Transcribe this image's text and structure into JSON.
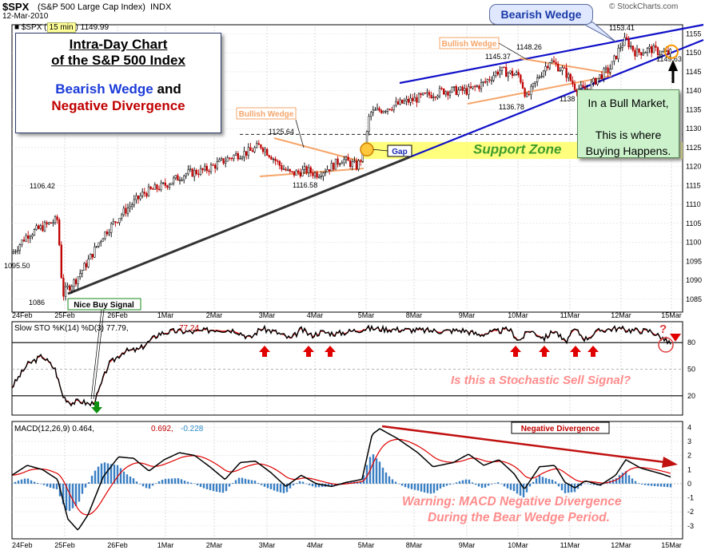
{
  "header": {
    "symbol": "$SPX",
    "index_name": "S&P 500 Large Cap Index",
    "exchange": "INDX",
    "source": "© StockCharts.com",
    "date": "12-Mar-2010",
    "legend_symbol": "$SPX",
    "interval": "15 min",
    "last": "1149.99"
  },
  "title_box": {
    "line1": "Intra-Day Chart",
    "line2": "of the S&P 500 Index",
    "line3a": "Bearish Wedge",
    "line3b": "and",
    "line4": "Negative Divergence"
  },
  "annotations": {
    "bearish_wedge": "Bearish Wedge",
    "bullish_wedge_1": "Bullish Wedge",
    "bullish_wedge_2": "Bullish Wedge",
    "support_zone": "Support Zone",
    "gap": "Gap",
    "nice_buy": "Nice Buy Signal",
    "bull_market": "In a Bull Market,\n\nThis is where\nBuying Happens.",
    "stoch_question": "Is this a Stochastic Sell Signal?",
    "question_mark": "?",
    "neg_div": "Negative Divergence",
    "macd_warning_1": "Warning: MACD Negative Divergence",
    "macd_warning_2": "During the Bear Wedge Period."
  },
  "price_labels": [
    "1106.42",
    "1095.50",
    "1086",
    "1125.64",
    "1116.58",
    "1145.37",
    "1148.26",
    "1136.78",
    "1138",
    "1153.41",
    "1149.63"
  ],
  "colors": {
    "price": "#000000",
    "stoch_k": "#000000",
    "stoch_d": "#e00000",
    "macd_line": "#000000",
    "signal_line": "#e00000",
    "histogram": "#3a7fc4",
    "wedge_lines": "#1010c8",
    "bullish_wedge": "#f5a56a",
    "support_zone": "#ffff66",
    "support_text": "#3f9c2c",
    "uptrend": "#333333",
    "sell_arrow": "#e00000",
    "buy_arrow": "#109010"
  },
  "chart_data": [
    {
      "type": "candlestick",
      "interval": "15 min",
      "x_ticks": [
        "24Feb",
        "25Feb",
        "26Feb",
        "1Mar",
        "2Mar",
        "3Mar",
        "4Mar",
        "5Mar",
        "8Mar",
        "9Mar",
        "10Mar",
        "11Mar",
        "12Mar",
        "15Mar"
      ],
      "y_ticks": [
        1085,
        1090,
        1095,
        1100,
        1105,
        1110,
        1115,
        1120,
        1125,
        1130,
        1135,
        1140,
        1145,
        1150,
        1155
      ],
      "ylim": [
        1082,
        1157
      ],
      "close_path": [
        [
          0,
          1097
        ],
        [
          0.3,
          1102
        ],
        [
          0.6,
          1104
        ],
        [
          0.9,
          1106
        ],
        [
          1.0,
          1086
        ],
        [
          1.1,
          1088
        ],
        [
          1.25,
          1090
        ],
        [
          1.5,
          1095
        ],
        [
          1.8,
          1102
        ],
        [
          2.2,
          1108
        ],
        [
          2.6,
          1113
        ],
        [
          3.0,
          1115
        ],
        [
          3.4,
          1118
        ],
        [
          3.8,
          1119
        ],
        [
          4.1,
          1121
        ],
        [
          4.4,
          1123
        ],
        [
          4.7,
          1124
        ],
        [
          4.9,
          1125.6
        ],
        [
          5.1,
          1123
        ],
        [
          5.3,
          1120
        ],
        [
          5.5,
          1118
        ],
        [
          5.8,
          1119
        ],
        [
          6.0,
          1118
        ],
        [
          6.3,
          1120
        ],
        [
          6.5,
          1122
        ],
        [
          6.8,
          1120
        ],
        [
          6.95,
          1124
        ],
        [
          7.05,
          1134
        ],
        [
          7.5,
          1136
        ],
        [
          8.0,
          1138
        ],
        [
          8.5,
          1140
        ],
        [
          9.0,
          1140
        ],
        [
          9.3,
          1142
        ],
        [
          9.6,
          1145.4
        ],
        [
          10.0,
          1144
        ],
        [
          10.15,
          1138
        ],
        [
          10.4,
          1144
        ],
        [
          10.6,
          1148
        ],
        [
          10.9,
          1145
        ],
        [
          11.1,
          1141
        ],
        [
          11.3,
          1140
        ],
        [
          11.6,
          1144
        ],
        [
          11.8,
          1146
        ],
        [
          12.0,
          1152
        ],
        [
          12.1,
          1153.4
        ],
        [
          12.3,
          1150
        ],
        [
          12.6,
          1151
        ],
        [
          12.8,
          1150
        ],
        [
          13.0,
          1150
        ]
      ]
    },
    {
      "type": "line",
      "name": "Slow STO %K(14) %D(3)",
      "k_last": 77.79,
      "d_last": 77.24,
      "levels": [
        20,
        50,
        80
      ],
      "ylim": [
        0,
        100
      ]
    },
    {
      "type": "line",
      "name": "MACD(12,26,9)",
      "macd_last": 0.464,
      "signal_last": 0.692,
      "hist_last": -0.228,
      "y_ticks": [
        -3,
        -2,
        -1,
        0,
        1,
        2,
        3,
        4
      ],
      "ylim": [
        -3.8,
        4.3
      ]
    }
  ]
}
